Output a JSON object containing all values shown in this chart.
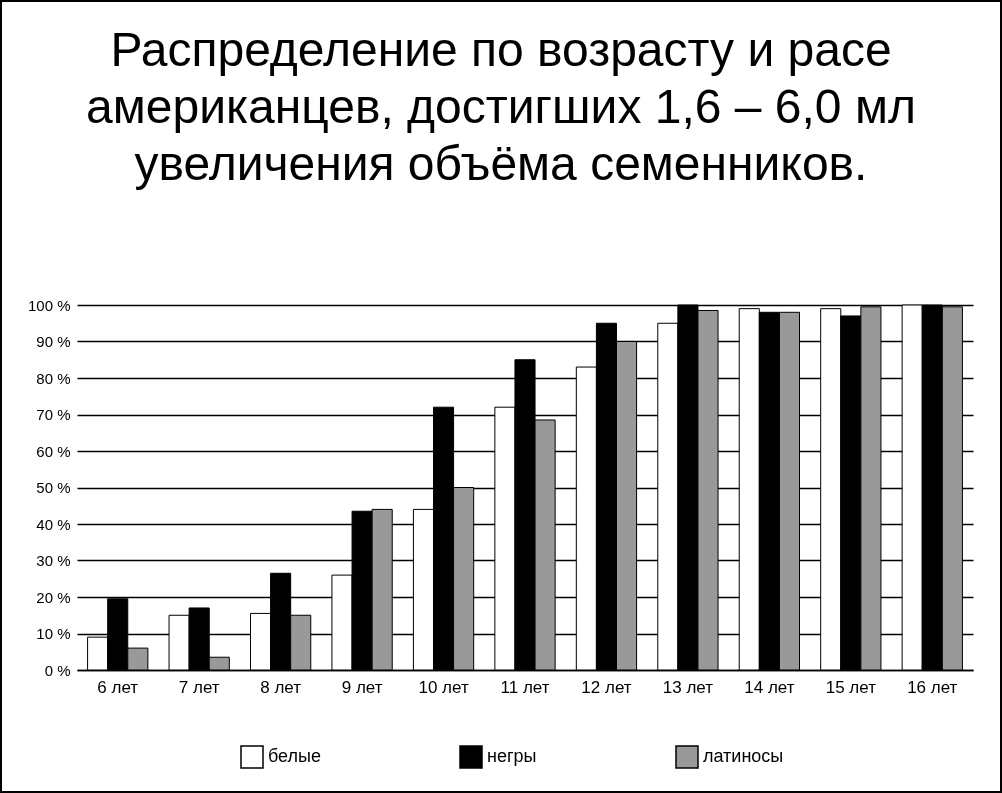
{
  "chart_data": {
    "type": "bar",
    "title": "Распределение по возрасту и расе американцев, достигших 1,6 – 6,0 мл увеличения объёма семенников.",
    "categories": [
      "6 лет",
      "7 лет",
      "8 лет",
      "9 лет",
      "10 лет",
      "11 лет",
      "12 лет",
      "13 лет",
      "14 лет",
      "15 лет",
      "16 лет"
    ],
    "series": [
      {
        "name": "белые",
        "color": "#ffffff",
        "values": [
          9,
          15,
          15.5,
          26,
          44,
          72,
          83,
          95,
          99,
          99,
          100
        ]
      },
      {
        "name": "негры",
        "color": "#000000",
        "values": [
          19.5,
          17,
          26.5,
          43.5,
          72,
          85,
          95,
          100,
          98,
          97,
          100
        ]
      },
      {
        "name": "латиносы",
        "color": "#999999",
        "values": [
          6,
          3.5,
          15,
          44,
          50,
          68.5,
          90,
          98.5,
          98,
          99.5,
          99.5
        ]
      }
    ],
    "ylim": [
      0,
      100
    ],
    "yticks": [
      {
        "value": 0,
        "label": "0 %"
      },
      {
        "value": 10,
        "label": "10 %"
      },
      {
        "value": 20,
        "label": "20 %"
      },
      {
        "value": 30,
        "label": "30 %"
      },
      {
        "value": 40,
        "label": "40 %"
      },
      {
        "value": 50,
        "label": "50 %"
      },
      {
        "value": 60,
        "label": "60 %"
      },
      {
        "value": 70,
        "label": "70 %"
      },
      {
        "value": 80,
        "label": "80 %"
      },
      {
        "value": 90,
        "label": "90 %"
      },
      {
        "value": 100,
        "label": "100 %"
      }
    ],
    "grid": "y",
    "legend": "bottom"
  }
}
